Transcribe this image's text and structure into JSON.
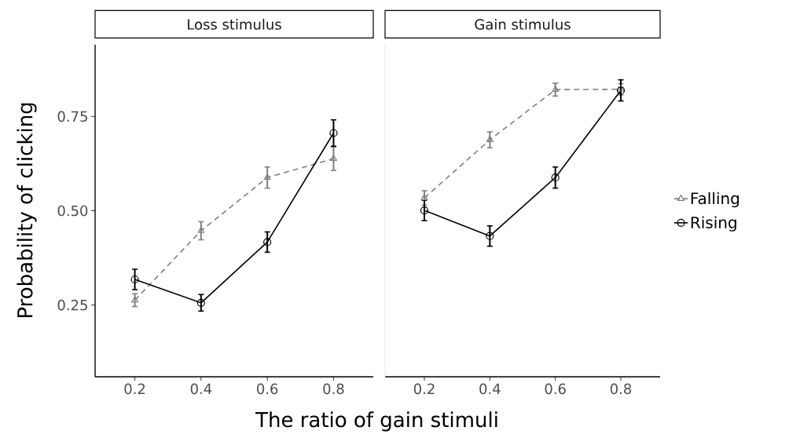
{
  "chart_data": [
    {
      "type": "line",
      "title": "Loss stimulus",
      "xlabel": "The ratio of gain stimuli",
      "ylabel": "Probability of clicking",
      "x": [
        0.2,
        0.4,
        0.6,
        0.8
      ],
      "xlim": [
        0.08,
        0.92
      ],
      "ylim": [
        0.06,
        0.94
      ],
      "xticks": [
        0.2,
        0.4,
        0.6,
        0.8
      ],
      "yticks": [
        {
          "value": 0.25,
          "label": "0.25"
        },
        {
          "value": 0.5,
          "label": "0.50"
        },
        {
          "value": 0.75,
          "label": "0.75"
        }
      ],
      "grid": false,
      "series": [
        {
          "color": "#808080",
          "marker": "triangle",
          "line_style": "dashed",
          "values": [
            0.263,
            0.447,
            0.588,
            0.638
          ],
          "errors": [
            0.017,
            0.024,
            0.028,
            0.031
          ]
        },
        {
          "color": "#000000",
          "marker": "circle",
          "line_style": "solid",
          "values": [
            0.318,
            0.256,
            0.417,
            0.706
          ],
          "errors": [
            0.027,
            0.022,
            0.027,
            0.035
          ]
        }
      ]
    },
    {
      "type": "line",
      "title": "Gain stimulus",
      "x": [
        0.2,
        0.4,
        0.6,
        0.8
      ],
      "xlim": [
        0.08,
        0.92
      ],
      "ylim": [
        0.06,
        0.94
      ],
      "xticks": [
        0.2,
        0.4,
        0.6,
        0.8
      ],
      "tick_labels": "x",
      "grid": false,
      "legend": "right",
      "series": [
        {
          "name": "Falling",
          "color": "#808080",
          "marker": "triangle",
          "line_style": "dashed",
          "values": [
            0.534,
            0.688,
            0.821,
            0.822
          ],
          "errors": [
            0.019,
            0.021,
            0.017,
            0.015
          ]
        },
        {
          "name": "Rising",
          "color": "#000000",
          "marker": "circle",
          "line_style": "solid",
          "values": [
            0.501,
            0.433,
            0.588,
            0.819
          ],
          "errors": [
            0.027,
            0.027,
            0.028,
            0.028
          ]
        }
      ]
    }
  ]
}
